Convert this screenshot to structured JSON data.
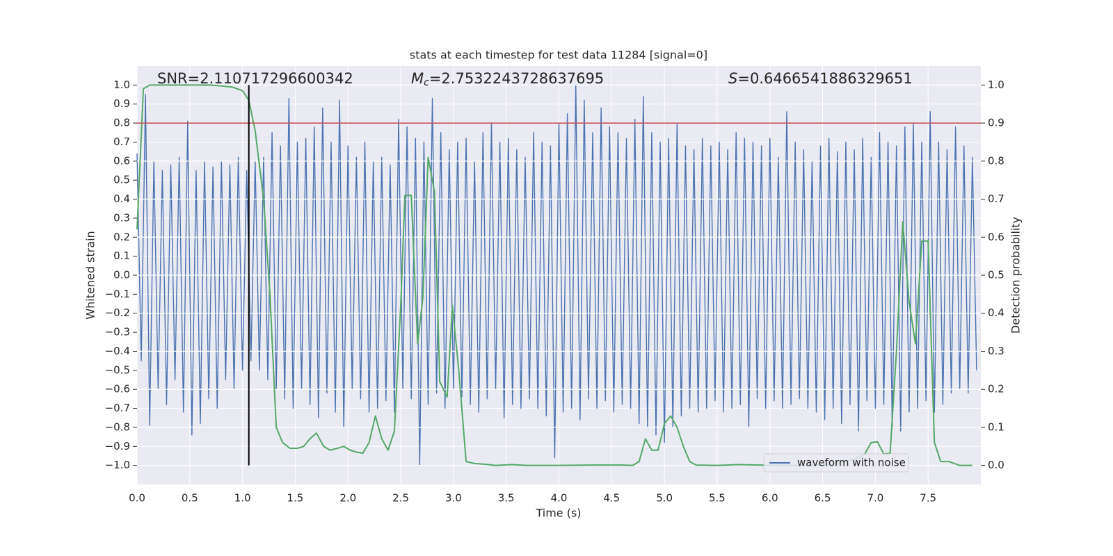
{
  "chart_data": {
    "type": "line",
    "title": "stats at each timestep for test data 11284 [signal=0]",
    "xlabel": "Time (s)",
    "ylabel": "Whitened strain",
    "y2label": "Detection probability",
    "xlim": [
      0,
      8
    ],
    "ylim": [
      -1.1,
      1.1
    ],
    "y2lim": [
      -0.05,
      1.05
    ],
    "xticks": [
      {
        "value": 0,
        "label": "0.0"
      },
      0.5,
      {
        "value": 1,
        "label": "1.0"
      },
      1.5,
      {
        "value": 2,
        "label": "2.0"
      },
      2.5,
      {
        "value": 3,
        "label": "3.0"
      },
      3.5,
      {
        "value": 4,
        "label": "4.0"
      },
      4.5,
      {
        "value": 5,
        "label": "5.0"
      },
      5.5,
      {
        "value": 6,
        "label": "6.0"
      },
      6.5,
      {
        "value": 7,
        "label": "7.0"
      },
      7.5
    ],
    "yticks": [
      {
        "value": 1,
        "label": "1.0"
      },
      0.9,
      0.8,
      0.7,
      0.6,
      0.5,
      0.4,
      0.3,
      0.2,
      0.1,
      {
        "value": 0,
        "label": "0.0"
      },
      {
        "value": -0.1,
        "label": "−0.1"
      },
      {
        "value": -0.2,
        "label": "−0.2"
      },
      {
        "value": -0.3,
        "label": "−0.3"
      },
      {
        "value": -0.4,
        "label": "−0.4"
      },
      {
        "value": -0.5,
        "label": "−0.5"
      },
      {
        "value": -0.6,
        "label": "−0.6"
      },
      {
        "value": -0.7,
        "label": "−0.7"
      },
      {
        "value": -0.8,
        "label": "−0.8"
      },
      {
        "value": -0.9,
        "label": "−0.9"
      },
      {
        "value": -1,
        "label": "−1.0"
      }
    ],
    "y2ticks": [
      {
        "value": 0,
        "label": "0.0"
      },
      0.1,
      0.2,
      0.3,
      0.4,
      0.5,
      0.6,
      0.7,
      0.8,
      0.9,
      {
        "value": 1,
        "label": "1.0"
      }
    ],
    "grid": true,
    "legend": "lower right",
    "series": [
      {
        "name": "waveform with noise",
        "color": "#4c72b0",
        "x": [
          0,
          0.04,
          0.08,
          0.12,
          0.16,
          0.2,
          0.24,
          0.28,
          0.32,
          0.36,
          0.4,
          0.44,
          0.48,
          0.52,
          0.56,
          0.6,
          0.64,
          0.68,
          0.72,
          0.76,
          0.8,
          0.84,
          0.88,
          0.92,
          0.96,
          1,
          1.04,
          1.08,
          1.12,
          1.16,
          1.2,
          1.24,
          1.28,
          1.32,
          1.36,
          1.4,
          1.44,
          1.48,
          1.52,
          1.56,
          1.6,
          1.64,
          1.68,
          1.72,
          1.76,
          1.8,
          1.84,
          1.88,
          1.92,
          1.96,
          2,
          2.04,
          2.08,
          2.12,
          2.16,
          2.2,
          2.24,
          2.28,
          2.32,
          2.36,
          2.4,
          2.44,
          2.48,
          2.52,
          2.56,
          2.6,
          2.64,
          2.68,
          2.72,
          2.76,
          2.8,
          2.84,
          2.88,
          2.92,
          2.96,
          3,
          3.04,
          3.08,
          3.12,
          3.16,
          3.2,
          3.24,
          3.28,
          3.32,
          3.36,
          3.4,
          3.44,
          3.48,
          3.52,
          3.56,
          3.6,
          3.64,
          3.68,
          3.72,
          3.76,
          3.8,
          3.84,
          3.88,
          3.92,
          3.96,
          4,
          4.04,
          4.08,
          4.12,
          4.16,
          4.2,
          4.24,
          4.28,
          4.32,
          4.36,
          4.4,
          4.44,
          4.48,
          4.52,
          4.56,
          4.6,
          4.64,
          4.68,
          4.72,
          4.76,
          4.8,
          4.84,
          4.88,
          4.92,
          4.96,
          5,
          5.04,
          5.08,
          5.12,
          5.16,
          5.2,
          5.24,
          5.28,
          5.32,
          5.36,
          5.4,
          5.44,
          5.48,
          5.52,
          5.56,
          5.6,
          5.64,
          5.68,
          5.72,
          5.76,
          5.8,
          5.84,
          5.88,
          5.92,
          5.96,
          6,
          6.04,
          6.08,
          6.12,
          6.16,
          6.2,
          6.24,
          6.28,
          6.32,
          6.36,
          6.4,
          6.44,
          6.48,
          6.52,
          6.56,
          6.6,
          6.64,
          6.68,
          6.72,
          6.76,
          6.8,
          6.84,
          6.88,
          6.92,
          6.96,
          7,
          7.04,
          7.08,
          7.12,
          7.16,
          7.2,
          7.24,
          7.28,
          7.32,
          7.36,
          7.4,
          7.44,
          7.48,
          7.52,
          7.56,
          7.6,
          7.64,
          7.68,
          7.72,
          7.76,
          7.8,
          7.84,
          7.88,
          7.92,
          7.96
        ],
        "values": [
          0.64,
          -0.45,
          0.95,
          -0.79,
          0.6,
          -0.6,
          0.55,
          -0.68,
          0.58,
          -0.55,
          0.62,
          -0.72,
          0.81,
          -0.84,
          0.55,
          -0.78,
          0.6,
          -0.65,
          0.57,
          -0.7,
          0.6,
          -0.55,
          0.58,
          -0.6,
          0.62,
          -0.5,
          0.55,
          -0.45,
          0.6,
          -0.5,
          0.62,
          -0.55,
          0.75,
          -0.6,
          0.68,
          -0.65,
          0.93,
          -0.7,
          0.7,
          -0.6,
          0.72,
          -0.68,
          0.78,
          -0.75,
          0.88,
          -0.62,
          0.7,
          -0.72,
          0.92,
          -0.8,
          0.68,
          -0.6,
          0.62,
          -0.65,
          0.7,
          -0.72,
          0.6,
          -0.7,
          0.62,
          -0.66,
          0.58,
          -0.72,
          0.82,
          -0.6,
          0.78,
          -0.65,
          0.72,
          -1.0,
          0.7,
          -0.68,
          0.93,
          -0.62,
          0.75,
          -0.7,
          0.66,
          -0.6,
          0.7,
          -0.64,
          0.72,
          -0.68,
          0.6,
          -0.72,
          0.75,
          -0.65,
          0.8,
          -0.6,
          0.7,
          -0.75,
          0.72,
          -0.68,
          0.66,
          -0.7,
          0.62,
          -0.65,
          0.75,
          -0.7,
          0.7,
          -0.74,
          0.68,
          -0.96,
          0.8,
          -0.72,
          0.85,
          -0.7,
          1.0,
          -0.76,
          0.92,
          -0.65,
          0.75,
          -0.7,
          0.88,
          -0.66,
          0.78,
          -0.72,
          0.75,
          -0.68,
          0.72,
          -0.7,
          0.82,
          -0.78,
          0.94,
          -0.8,
          0.75,
          -0.84,
          0.7,
          -0.88,
          0.72,
          -0.8,
          0.8,
          -0.74,
          0.68,
          -0.7,
          0.66,
          -0.72,
          0.72,
          -0.7,
          0.68,
          -0.66,
          0.7,
          -0.72,
          0.66,
          -0.7,
          0.75,
          -0.68,
          0.72,
          -0.8,
          0.7,
          -0.65,
          0.68,
          -0.7,
          0.72,
          -0.66,
          0.62,
          -0.7,
          0.86,
          -0.68,
          0.7,
          -0.65,
          0.66,
          -0.7,
          0.6,
          -0.72,
          0.68,
          -0.76,
          0.72,
          -0.7,
          0.65,
          -0.78,
          0.7,
          -0.68,
          0.66,
          -0.82,
          0.72,
          -0.66,
          0.62,
          -0.7,
          0.75,
          -0.68,
          0.7,
          -0.8,
          0.68,
          -0.82,
          0.78,
          -0.72,
          0.8,
          -0.7,
          0.7,
          -0.66,
          0.86,
          -0.72,
          0.7,
          -0.68,
          0.66,
          -0.62,
          0.78,
          -0.6,
          0.68,
          -0.62,
          0.62,
          -0.5
        ]
      },
      {
        "color": "#55a868",
        "axis": "y2",
        "x": [
          0,
          0.06,
          0.12,
          0.3,
          0.5,
          0.7,
          0.9,
          1,
          1.06,
          1.12,
          1.2,
          1.26,
          1.32,
          1.38,
          1.45,
          1.52,
          1.58,
          1.64,
          1.7,
          1.77,
          1.83,
          1.9,
          1.96,
          2.02,
          2.08,
          2.14,
          2.2,
          2.26,
          2.32,
          2.38,
          2.44,
          2.5,
          2.54,
          2.6,
          2.66,
          2.71,
          2.76,
          2.82,
          2.87,
          2.94,
          2.99,
          3.05,
          3.12,
          3.2,
          3.3,
          3.4,
          3.55,
          3.7,
          4,
          4.3,
          4.6,
          4.7,
          4.76,
          4.82,
          4.88,
          4.94,
          5,
          5.06,
          5.12,
          5.18,
          5.24,
          5.3,
          5.5,
          5.7,
          5.9,
          6.1,
          6.4,
          6.6,
          6.72,
          6.84,
          6.9,
          6.96,
          7.02,
          7.08,
          7.14,
          7.2,
          7.26,
          7.32,
          7.38,
          7.44,
          7.5,
          7.56,
          7.62,
          7.7,
          7.8,
          7.92
        ],
        "values": [
          0.62,
          0.99,
          1.0,
          1.0,
          1.0,
          1.0,
          0.995,
          0.985,
          0.96,
          0.88,
          0.7,
          0.45,
          0.1,
          0.06,
          0.045,
          0.045,
          0.05,
          0.07,
          0.085,
          0.05,
          0.04,
          0.045,
          0.05,
          0.04,
          0.035,
          0.032,
          0.06,
          0.13,
          0.07,
          0.04,
          0.09,
          0.42,
          0.71,
          0.71,
          0.32,
          0.44,
          0.81,
          0.72,
          0.22,
          0.18,
          0.42,
          0.25,
          0.01,
          0.005,
          0.003,
          0.0,
          0.002,
          0.0,
          0.0,
          0.001,
          0.001,
          0.0,
          0.01,
          0.07,
          0.04,
          0.04,
          0.11,
          0.13,
          0.1,
          0.05,
          0.01,
          0.001,
          0.0,
          0.002,
          0.001,
          0.0,
          0.0,
          0.002,
          0.01,
          0.02,
          0.03,
          0.06,
          0.062,
          0.03,
          0.032,
          0.3,
          0.64,
          0.43,
          0.32,
          0.59,
          0.59,
          0.06,
          0.01,
          0.01,
          0.0,
          0.0
        ]
      }
    ],
    "hline": {
      "y": 0.8,
      "color": "#c44e52"
    },
    "vline": {
      "x": 1.06,
      "ymin": -1.0,
      "ymax": 1.0,
      "color": "#000000"
    },
    "annotations": {
      "snr": "SNR=2.110717296600342",
      "mc": {
        "symbol": "M",
        "subscript": "c",
        "value": "=2.7532243728637695"
      },
      "s": {
        "symbol": "S",
        "value": "=0.6466541886329651"
      }
    }
  }
}
